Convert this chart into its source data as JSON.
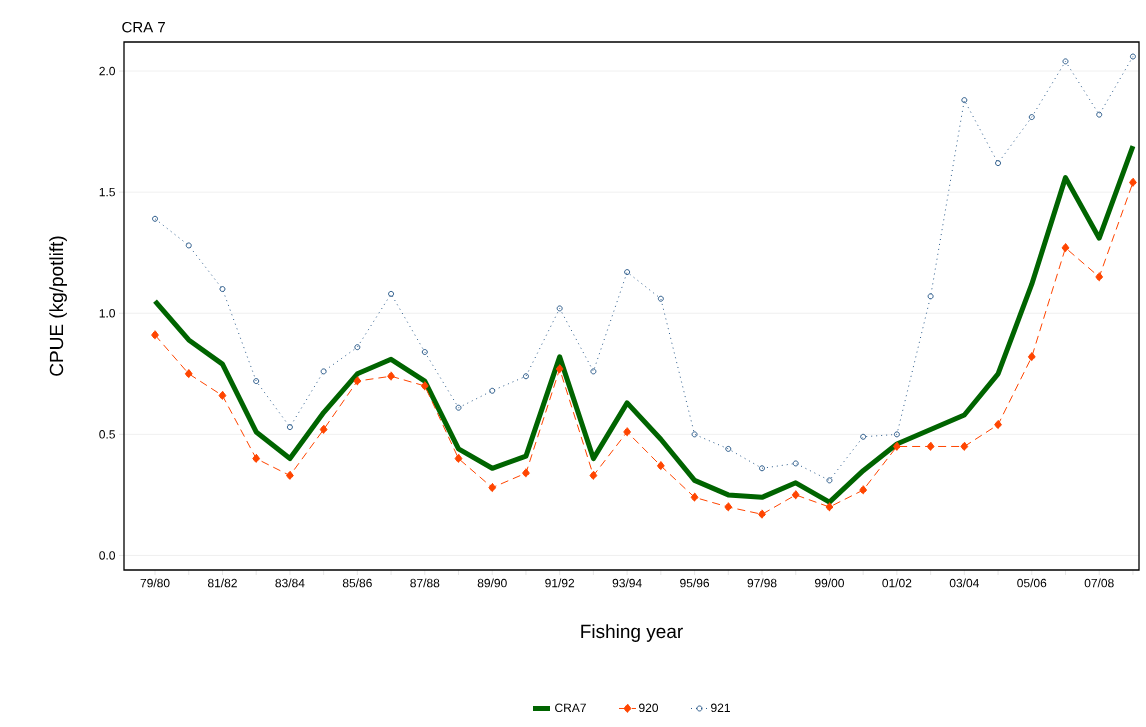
{
  "chart_data": {
    "type": "line",
    "title": "CRA 7",
    "xlabel": "Fishing year",
    "ylabel": "CPUE (kg/potlift)",
    "categories": [
      "79/80",
      null,
      "81/82",
      null,
      "83/84",
      null,
      "85/86",
      null,
      "87/88",
      null,
      "89/90",
      null,
      "91/92",
      null,
      "93/94",
      null,
      "95/96",
      null,
      "97/98",
      null,
      "99/00",
      null,
      "01/02",
      null,
      "03/04",
      null,
      "05/06",
      null,
      "07/08",
      null
    ],
    "series": [
      {
        "name": "CRA7",
        "color": "#006400",
        "marker": "none",
        "line_style": "solid",
        "values": [
          1.05,
          0.89,
          0.79,
          0.51,
          0.4,
          0.59,
          0.75,
          0.81,
          0.72,
          0.44,
          0.36,
          0.41,
          0.82,
          0.4,
          0.63,
          0.48,
          0.31,
          0.25,
          0.24,
          0.3,
          0.22,
          0.35,
          0.46,
          0.52,
          0.58,
          0.75,
          1.12,
          1.56,
          1.31,
          1.69
        ]
      },
      {
        "name": "920",
        "color": "#ff4500",
        "marker": "diamond",
        "line_style": "dashed",
        "values": [
          0.91,
          0.75,
          0.66,
          0.4,
          0.33,
          0.52,
          0.72,
          0.74,
          0.7,
          0.4,
          0.28,
          0.34,
          0.77,
          0.33,
          0.51,
          0.37,
          0.24,
          0.2,
          0.17,
          0.25,
          0.2,
          0.27,
          0.45,
          0.45,
          0.45,
          0.54,
          0.82,
          1.27,
          1.15,
          1.54
        ]
      },
      {
        "name": "921",
        "color": "#2a5a8a",
        "marker": "circle",
        "line_style": "dotted",
        "values": [
          1.39,
          1.28,
          1.1,
          0.72,
          0.53,
          0.76,
          0.86,
          1.08,
          0.84,
          0.61,
          0.68,
          0.74,
          1.02,
          0.76,
          1.17,
          1.06,
          0.5,
          0.44,
          0.36,
          0.38,
          0.31,
          0.49,
          0.5,
          1.07,
          1.88,
          1.62,
          1.81,
          2.04,
          1.82,
          2.06
        ]
      }
    ],
    "ylim": [
      -0.06,
      2.12
    ],
    "yticks": [
      {
        "value": 0,
        "label": "0.0"
      },
      {
        "value": 0.5,
        "label": "0.5"
      },
      {
        "value": 1,
        "label": "1.0"
      },
      {
        "value": 1.5,
        "label": "1.5"
      },
      {
        "value": 2,
        "label": "2.0"
      }
    ],
    "grid": "y",
    "legend": "bottom"
  }
}
